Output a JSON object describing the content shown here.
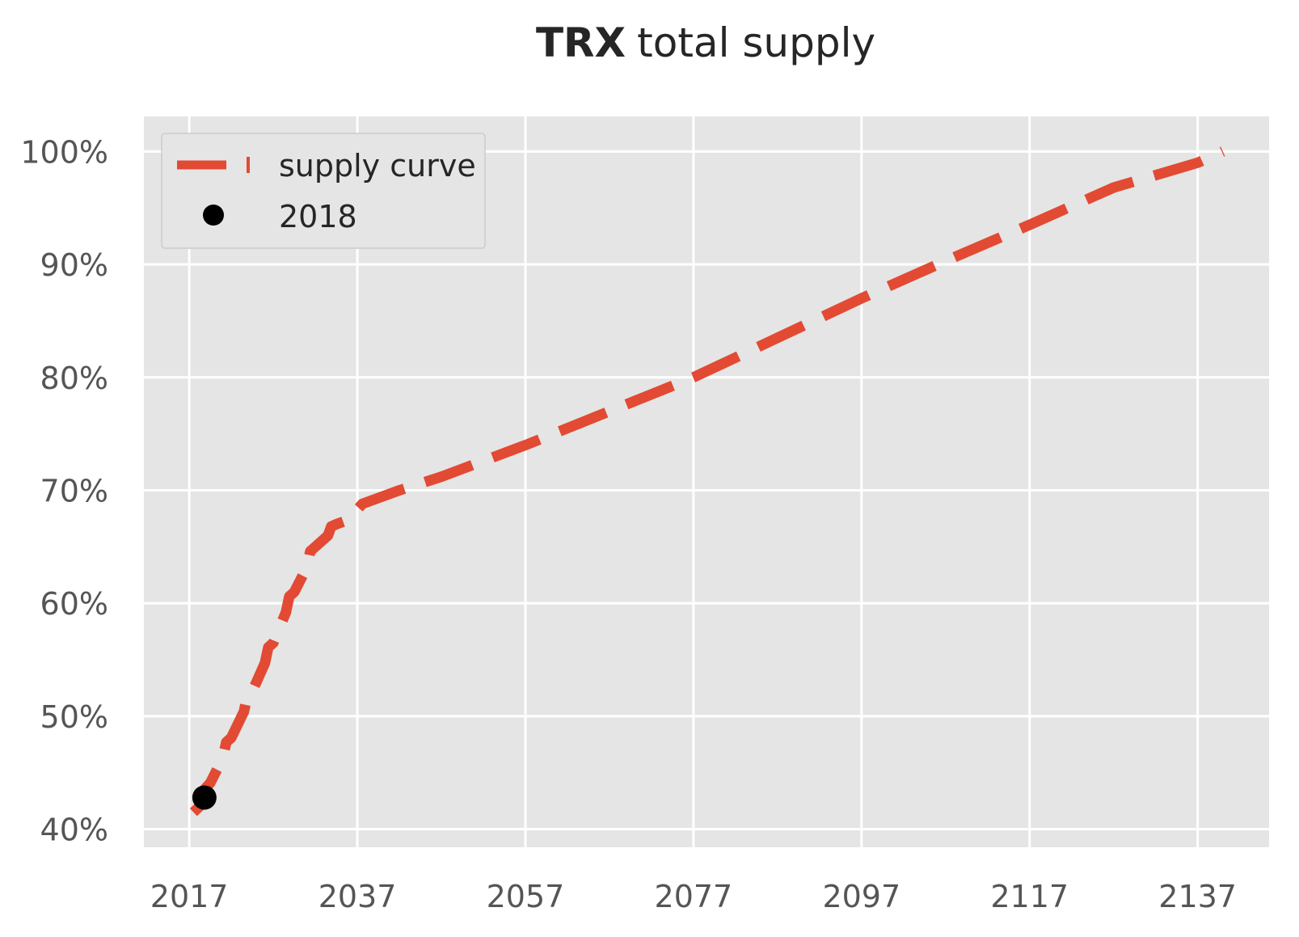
{
  "chart_data": {
    "type": "line",
    "title_bold": "TRX",
    "title_rest": "total supply",
    "xlabel": "",
    "ylabel": "",
    "xlim": [
      2011.6,
      2145.5
    ],
    "ylim": [
      38.4,
      103.1
    ],
    "x_ticks": [
      2017,
      2037,
      2057,
      2077,
      2097,
      2117,
      2137
    ],
    "x_tick_labels": [
      "2017",
      "2037",
      "2057",
      "2077",
      "2097",
      "2117",
      "2137"
    ],
    "y_ticks": [
      40,
      50,
      60,
      70,
      80,
      90,
      100
    ],
    "y_tick_labels": [
      "40%",
      "50%",
      "60%",
      "70%",
      "80%",
      "90%",
      "100%"
    ],
    "grid": true,
    "legend_position": "top-left",
    "series": [
      {
        "name": "supply curve",
        "style": "dashed",
        "color": "#E24A33",
        "x": [
          2017.5,
          2018.5,
          2018.9,
          2019.5,
          2021.0,
          2021.4,
          2022.0,
          2023.5,
          2023.9,
          2024.5,
          2026.0,
          2026.4,
          2027.0,
          2028.5,
          2028.9,
          2029.5,
          2031.0,
          2031.4,
          2032.0,
          2033.5,
          2033.9,
          2034.5,
          2036.0,
          2036.4,
          2037.0,
          2037.6,
          2042.0,
          2047.0,
          2057.0,
          2067.0,
          2077.0,
          2087.0,
          2097.0,
          2107.0,
          2117.0,
          2127.0,
          2137.0,
          2140.0
        ],
        "y": [
          41.5,
          42.2,
          43.6,
          44.1,
          46.3,
          47.7,
          48.1,
          50.4,
          51.8,
          52.2,
          54.7,
          56.1,
          56.5,
          59.2,
          60.6,
          61.0,
          63.2,
          64.6,
          65.0,
          66.0,
          66.8,
          67.0,
          67.4,
          68.0,
          68.3,
          68.8,
          70.0,
          71.2,
          74.0,
          77.0,
          80.0,
          83.5,
          87.0,
          90.3,
          93.5,
          96.8,
          99.0,
          100.0
        ]
      },
      {
        "name": "2018",
        "style": "marker",
        "color": "#000000",
        "x": [
          2018.8
        ],
        "y": [
          42.8
        ]
      }
    ]
  },
  "colors": {
    "axes_background": "#E5E5E5",
    "grid": "#FFFFFF",
    "curve": "#E24A33",
    "marker": "#000000"
  }
}
